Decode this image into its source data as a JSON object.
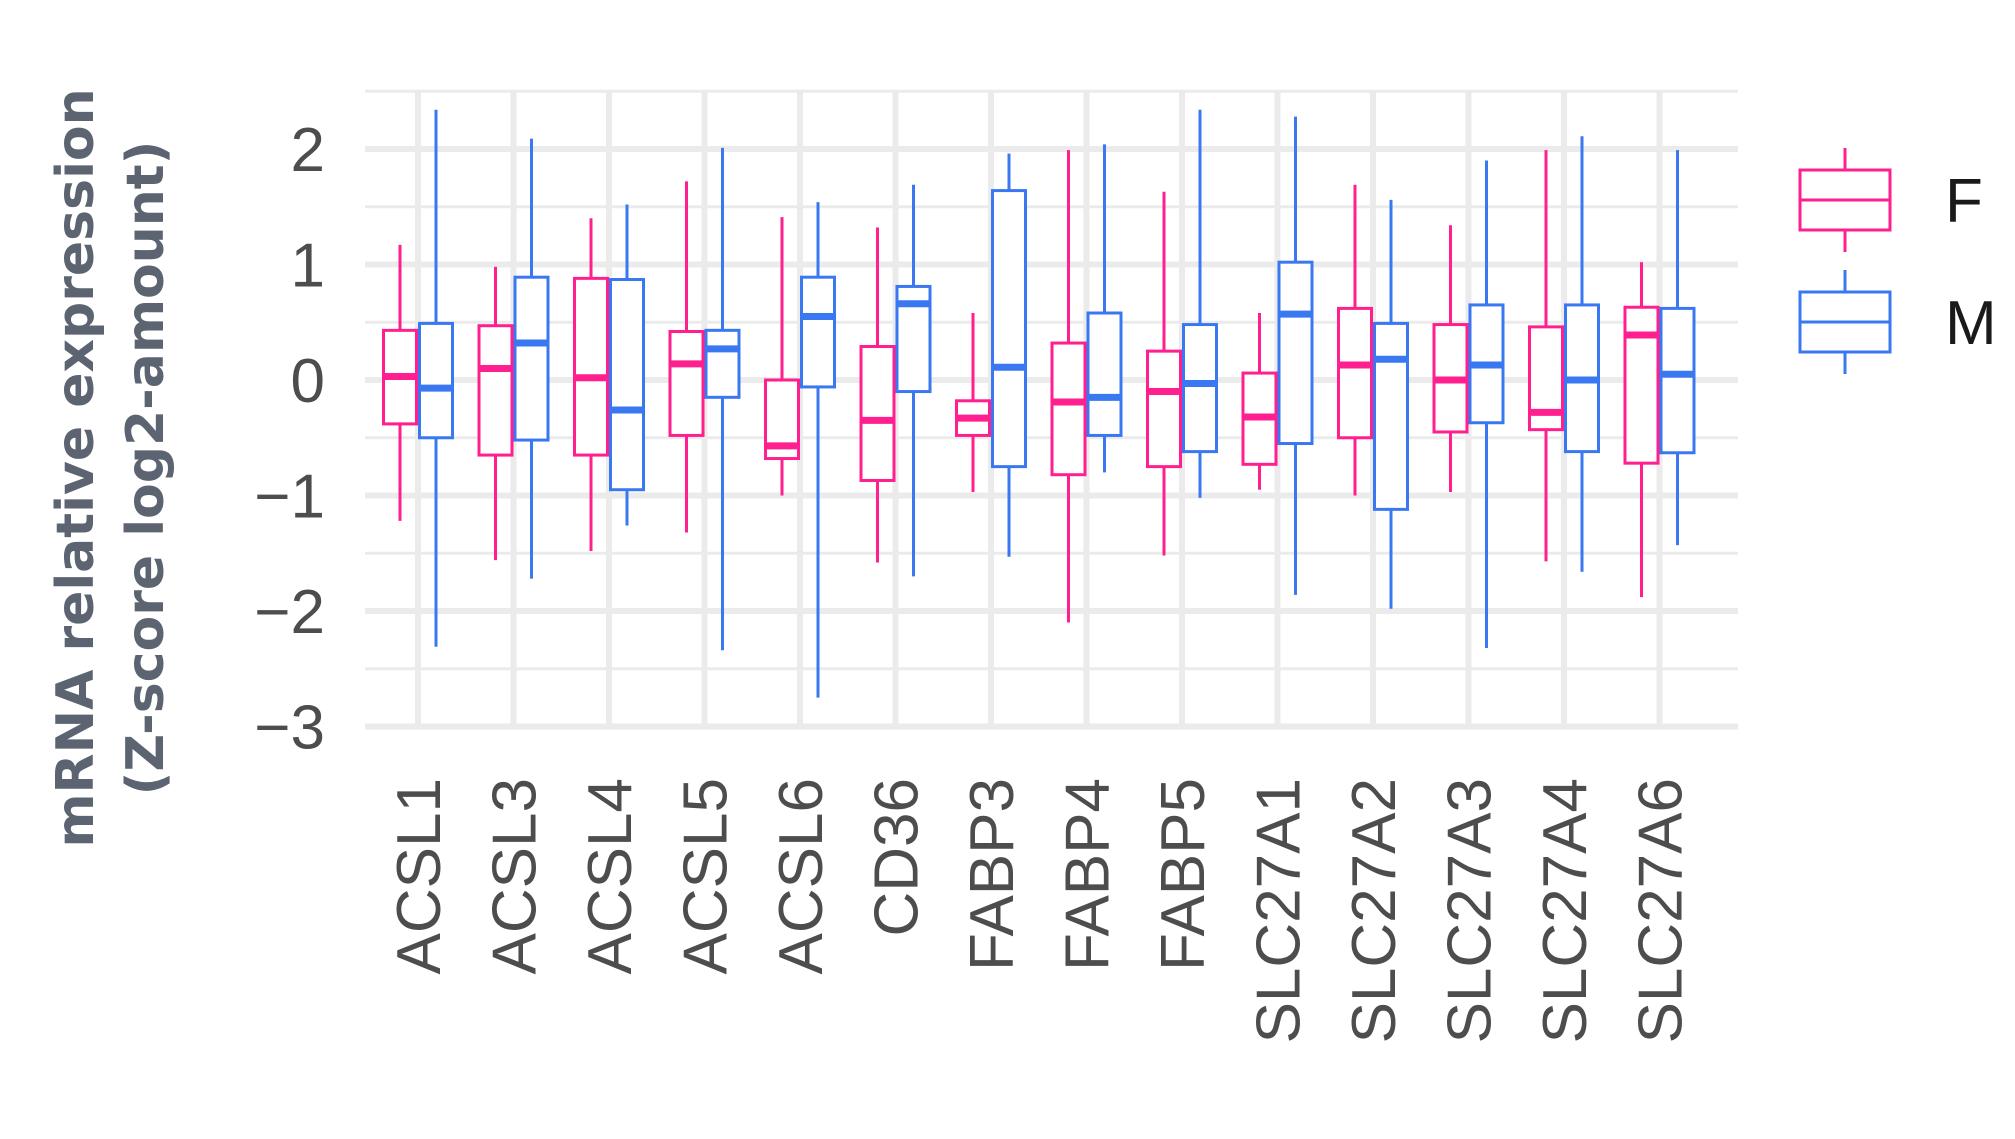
{
  "chart_data": {
    "type": "boxplot",
    "ylabel_lines": [
      "mRNA relative expression",
      "(Z-score log2-amount)"
    ],
    "ylim": [
      -3,
      2.5
    ],
    "yticks": [
      -3,
      -2,
      -1,
      0,
      1,
      2
    ],
    "ytick_labels": [
      "−3",
      "−2",
      "−1",
      "0",
      "1",
      "2"
    ],
    "grid": true,
    "legend_position": "right",
    "categories": [
      "ACSL1",
      "ACSL3",
      "ACSL4",
      "ACSL5",
      "ACSL6",
      "CD36",
      "FABP3",
      "FABP4",
      "FABP5",
      "SLC27A1",
      "SLC27A2",
      "SLC27A3",
      "SLC27A4",
      "SLC27A6"
    ],
    "series": [
      {
        "name": "F",
        "color": "#ff1f8e",
        "boxes": [
          {
            "whislo": -1.22,
            "q1": -0.38,
            "med": 0.03,
            "q3": 0.43,
            "whishi": 1.17
          },
          {
            "whislo": -1.56,
            "q1": -0.65,
            "med": 0.1,
            "q3": 0.47,
            "whishi": 0.98
          },
          {
            "whislo": -1.48,
            "q1": -0.65,
            "med": 0.02,
            "q3": 0.88,
            "whishi": 1.4
          },
          {
            "whislo": -1.32,
            "q1": -0.48,
            "med": 0.14,
            "q3": 0.42,
            "whishi": 1.72
          },
          {
            "whislo": -1.0,
            "q1": -0.68,
            "med": -0.57,
            "q3": 0.0,
            "whishi": 1.41
          },
          {
            "whislo": -1.58,
            "q1": -0.87,
            "med": -0.35,
            "q3": 0.29,
            "whishi": 1.32
          },
          {
            "whislo": -0.97,
            "q1": -0.48,
            "med": -0.33,
            "q3": -0.18,
            "whishi": 0.58
          },
          {
            "whislo": -2.1,
            "q1": -0.82,
            "med": -0.19,
            "q3": 0.32,
            "whishi": 1.99
          },
          {
            "whislo": -1.52,
            "q1": -0.75,
            "med": -0.1,
            "q3": 0.25,
            "whishi": 1.63
          },
          {
            "whislo": -0.95,
            "q1": -0.73,
            "med": -0.32,
            "q3": 0.06,
            "whishi": 0.58
          },
          {
            "whislo": -1.0,
            "q1": -0.5,
            "med": 0.13,
            "q3": 0.62,
            "whishi": 1.69
          },
          {
            "whislo": -0.97,
            "q1": -0.45,
            "med": 0.0,
            "q3": 0.48,
            "whishi": 1.34
          },
          {
            "whislo": -1.57,
            "q1": -0.43,
            "med": -0.28,
            "q3": 0.46,
            "whishi": 1.99
          },
          {
            "whislo": -1.88,
            "q1": -0.72,
            "med": 0.39,
            "q3": 0.63,
            "whishi": 1.02
          }
        ]
      },
      {
        "name": "M",
        "color": "#3a78f2",
        "boxes": [
          {
            "whislo": -2.31,
            "q1": -0.5,
            "med": -0.07,
            "q3": 0.49,
            "whishi": 2.34
          },
          {
            "whislo": -1.72,
            "q1": -0.52,
            "med": 0.32,
            "q3": 0.89,
            "whishi": 2.09
          },
          {
            "whislo": -1.26,
            "q1": -0.95,
            "med": -0.26,
            "q3": 0.87,
            "whishi": 1.52
          },
          {
            "whislo": -2.34,
            "q1": -0.15,
            "med": 0.27,
            "q3": 0.43,
            "whishi": 2.01
          },
          {
            "whislo": -2.75,
            "q1": -0.06,
            "med": 0.55,
            "q3": 0.89,
            "whishi": 1.54
          },
          {
            "whislo": -1.7,
            "q1": -0.1,
            "med": 0.66,
            "q3": 0.81,
            "whishi": 1.69
          },
          {
            "whislo": -1.53,
            "q1": -0.75,
            "med": 0.11,
            "q3": 1.64,
            "whishi": 1.96
          },
          {
            "whislo": -0.8,
            "q1": -0.48,
            "med": -0.15,
            "q3": 0.58,
            "whishi": 2.04
          },
          {
            "whislo": -1.02,
            "q1": -0.62,
            "med": -0.03,
            "q3": 0.48,
            "whishi": 2.34
          },
          {
            "whislo": -1.86,
            "q1": -0.55,
            "med": 0.57,
            "q3": 1.02,
            "whishi": 2.28
          },
          {
            "whislo": -1.98,
            "q1": -1.12,
            "med": 0.18,
            "q3": 0.49,
            "whishi": 1.56
          },
          {
            "whislo": -2.32,
            "q1": -0.37,
            "med": 0.13,
            "q3": 0.65,
            "whishi": 1.9
          },
          {
            "whislo": -1.66,
            "q1": -0.62,
            "med": 0.0,
            "q3": 0.65,
            "whishi": 2.11
          },
          {
            "whislo": -1.43,
            "q1": -0.63,
            "med": 0.05,
            "q3": 0.62,
            "whishi": 1.99
          }
        ]
      }
    ]
  }
}
